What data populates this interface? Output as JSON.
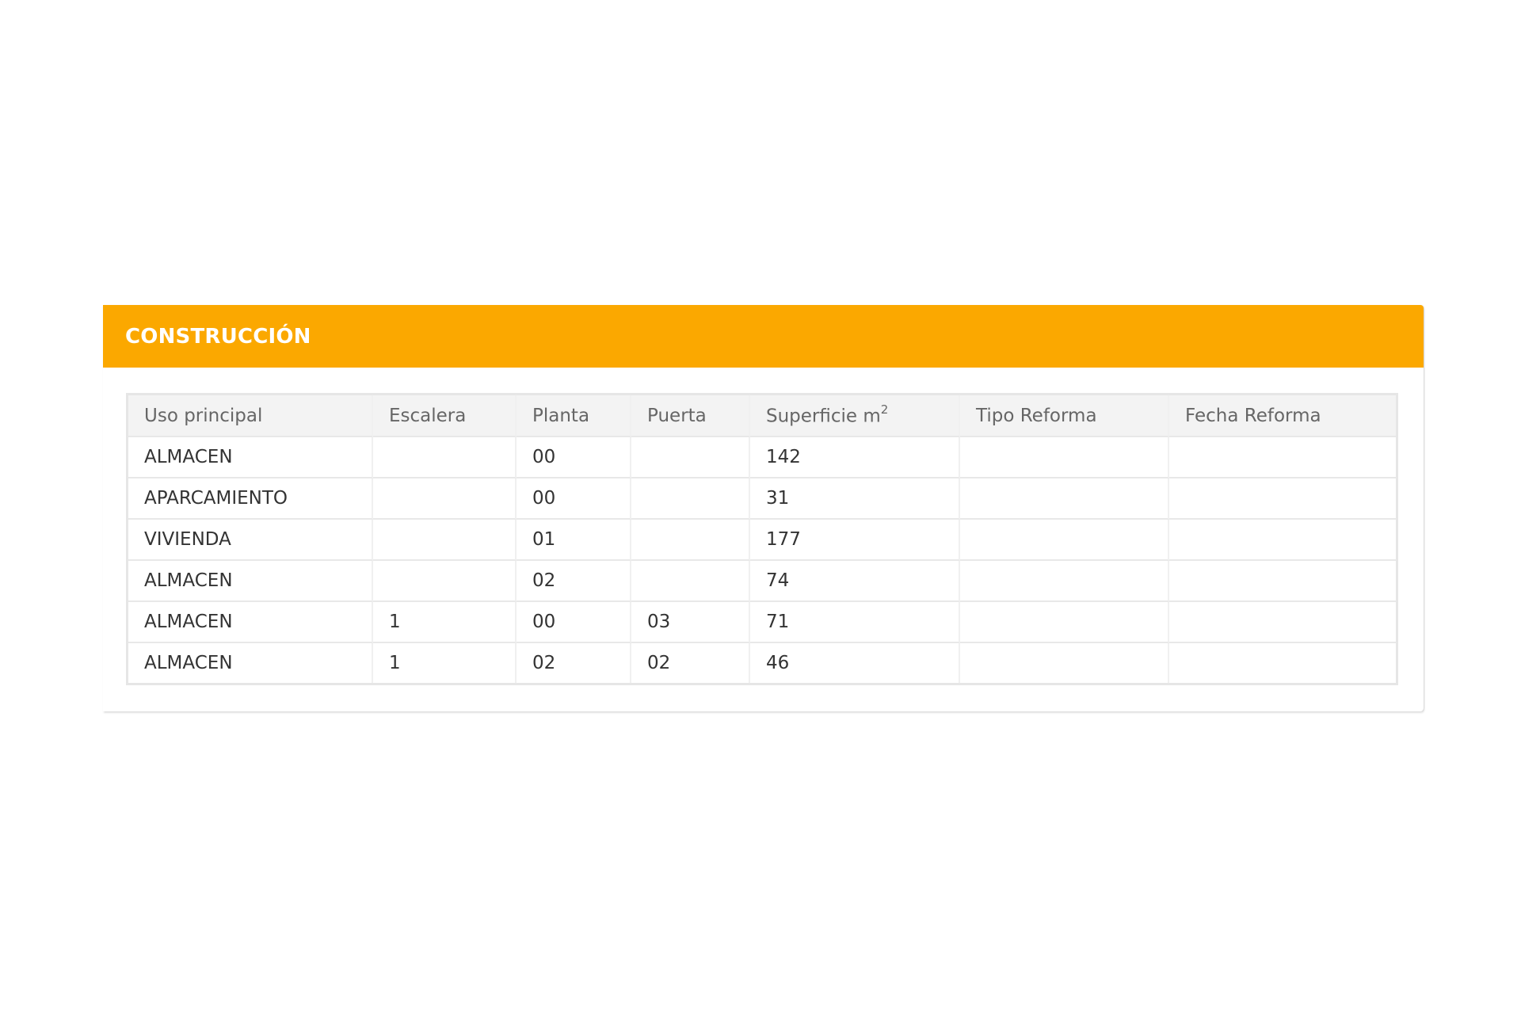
{
  "panel": {
    "title": "CONSTRUCCIÓN",
    "accent_color": "#fba800"
  },
  "table": {
    "headers": [
      "Uso principal",
      "Escalera",
      "Planta",
      "Puerta",
      "Superficie m",
      "Tipo Reforma",
      "Fecha Reforma"
    ],
    "superficie_unit_sup": "2",
    "rows": [
      [
        "ALMACEN",
        "",
        "00",
        "",
        "142",
        "",
        ""
      ],
      [
        "APARCAMIENTO",
        "",
        "00",
        "",
        "31",
        "",
        ""
      ],
      [
        "VIVIENDA",
        "",
        "01",
        "",
        "177",
        "",
        ""
      ],
      [
        "ALMACEN",
        "",
        "02",
        "",
        "74",
        "",
        ""
      ],
      [
        "ALMACEN",
        "1",
        "00",
        "03",
        "71",
        "",
        ""
      ],
      [
        "ALMACEN",
        "1",
        "02",
        "02",
        "46",
        "",
        ""
      ]
    ]
  }
}
